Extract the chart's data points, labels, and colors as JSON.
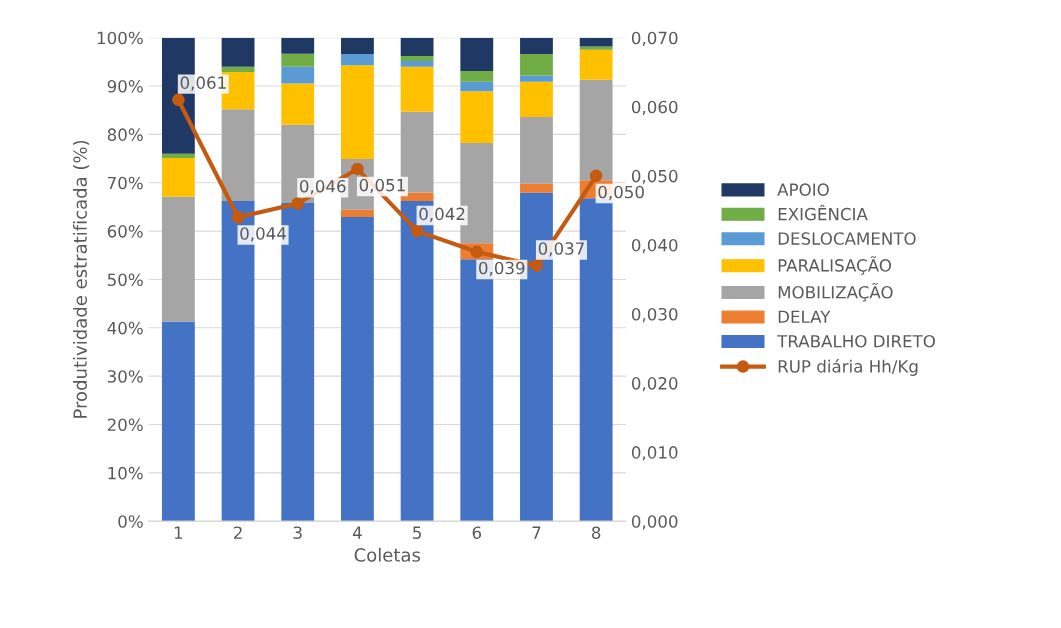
{
  "chart_data": {
    "type": "bar",
    "stacked": true,
    "xlabel": "Coletas",
    "ylabel": "Produtividade estratificada (%)",
    "categories": [
      "1",
      "2",
      "3",
      "4",
      "5",
      "6",
      "7",
      "8"
    ],
    "series": [
      {
        "name": "TRABALHO DIRETO",
        "color": "#4472c4",
        "values": [
          41.3,
          66.2,
          65.8,
          62.9,
          66.2,
          54.2,
          68.0,
          66.8
        ]
      },
      {
        "name": "DELAY",
        "color": "#ed7d31",
        "values": [
          0,
          0,
          0,
          1.5,
          1.8,
          3.3,
          1.8,
          3.7
        ]
      },
      {
        "name": "MOBILIZAÇÃO",
        "color": "#a5a5a5",
        "values": [
          25.8,
          19.0,
          16.2,
          10.5,
          16.7,
          20.7,
          13.8,
          20.8
        ]
      },
      {
        "name": "PARALISAÇÃO",
        "color": "#ffc000",
        "values": [
          8.0,
          7.7,
          8.5,
          19.4,
          9.3,
          10.7,
          7.3,
          6.2
        ]
      },
      {
        "name": "DESLOCAMENTO",
        "color": "#5b9bd5",
        "values": [
          0,
          0,
          3.5,
          2.3,
          1.2,
          2.0,
          1.3,
          0
        ]
      },
      {
        "name": "EXIGÊNCIA",
        "color": "#70ad47",
        "values": [
          0.9,
          1.1,
          2.7,
          0,
          1.0,
          2.2,
          4.4,
          0.7
        ]
      },
      {
        "name": "APOIO",
        "color": "#203864",
        "values": [
          24.0,
          6.0,
          3.3,
          3.4,
          3.8,
          6.9,
          3.4,
          1.8
        ]
      },
      {
        "name": "RUP diária Hh/Kg",
        "type": "line",
        "axis": "y2",
        "color": "#c55a11",
        "marker": "circle",
        "values": [
          0.061,
          0.044,
          0.046,
          0.051,
          0.042,
          0.039,
          0.037,
          0.05
        ],
        "value_labels": [
          "0,061",
          "0,044",
          "0,046",
          "0,051",
          "0,042",
          "0,039",
          "0,037",
          "0,050"
        ]
      }
    ],
    "ylim": [
      0,
      100
    ],
    "yticks": [
      {
        "value": 0,
        "label": "0%"
      },
      {
        "value": 10,
        "label": "10%"
      },
      {
        "value": 20,
        "label": "20%"
      },
      {
        "value": 30,
        "label": "30%"
      },
      {
        "value": 40,
        "label": "40%"
      },
      {
        "value": 50,
        "label": "50%"
      },
      {
        "value": 60,
        "label": "60%"
      },
      {
        "value": 70,
        "label": "70%"
      },
      {
        "value": 80,
        "label": "80%"
      },
      {
        "value": 90,
        "label": "90%"
      },
      {
        "value": 100,
        "label": "100%"
      }
    ],
    "y2lim": [
      0,
      0.07
    ],
    "y2ticks": [
      {
        "value": 0,
        "label": "0,000"
      },
      {
        "value": 0.01,
        "label": "0,010"
      },
      {
        "value": 0.02,
        "label": "0,020"
      },
      {
        "value": 0.03,
        "label": "0,030"
      },
      {
        "value": 0.04,
        "label": "0,040"
      },
      {
        "value": 0.05,
        "label": "0,050"
      },
      {
        "value": 0.06,
        "label": "0,060"
      },
      {
        "value": 0.07,
        "label": "0,070"
      }
    ],
    "grid": "y",
    "legend": "right"
  }
}
